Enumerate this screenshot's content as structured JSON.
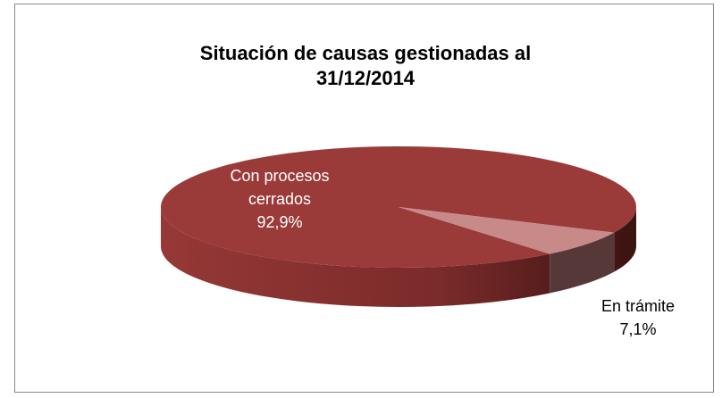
{
  "chart_data": {
    "type": "pie",
    "title": "Situación de causas gestionadas al 31/12/2014",
    "categories": [
      "Con procesos cerrados",
      "En trámite"
    ],
    "values": [
      92.9,
      7.1
    ],
    "value_labels": [
      "92,9%",
      "7,1%"
    ],
    "colors": [
      "#9a3b3a",
      "#c88a89"
    ]
  }
}
